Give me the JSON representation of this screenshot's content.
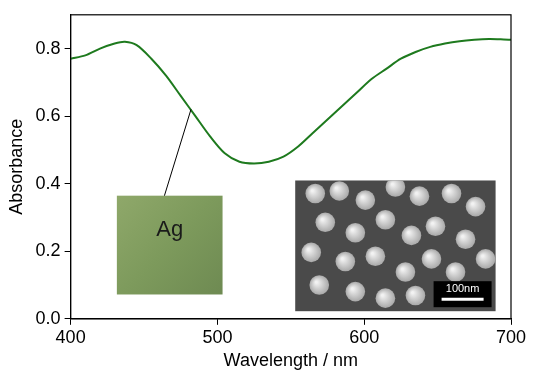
{
  "chart_data": {
    "type": "line",
    "x_label": "Wavelength / nm",
    "y_label": "Absorbance",
    "x": [
      400,
      410,
      420,
      430,
      437,
      445,
      455,
      465,
      475,
      485,
      495,
      505,
      515,
      525,
      535,
      545,
      555,
      565,
      575,
      585,
      595,
      605,
      615,
      625,
      635,
      645,
      655,
      665,
      675,
      685,
      695,
      700
    ],
    "values": [
      0.77,
      0.78,
      0.8,
      0.815,
      0.82,
      0.81,
      0.77,
      0.72,
      0.66,
      0.6,
      0.54,
      0.49,
      0.465,
      0.46,
      0.465,
      0.48,
      0.51,
      0.55,
      0.59,
      0.63,
      0.67,
      0.71,
      0.74,
      0.77,
      0.79,
      0.805,
      0.815,
      0.822,
      0.826,
      0.828,
      0.827,
      0.826
    ],
    "color": "#1e7a1e",
    "xlim": [
      400,
      700
    ],
    "xticks": [
      400,
      500,
      600,
      700
    ],
    "ylim": [
      0,
      0.9
    ],
    "yticks": [
      {
        "value": 0,
        "label": "0.0"
      },
      0.2,
      0.4,
      0.6,
      0.8
    ],
    "grid": false,
    "annotations": [
      {
        "text": "Ag"
      },
      {
        "text": "100nm"
      }
    ]
  }
}
